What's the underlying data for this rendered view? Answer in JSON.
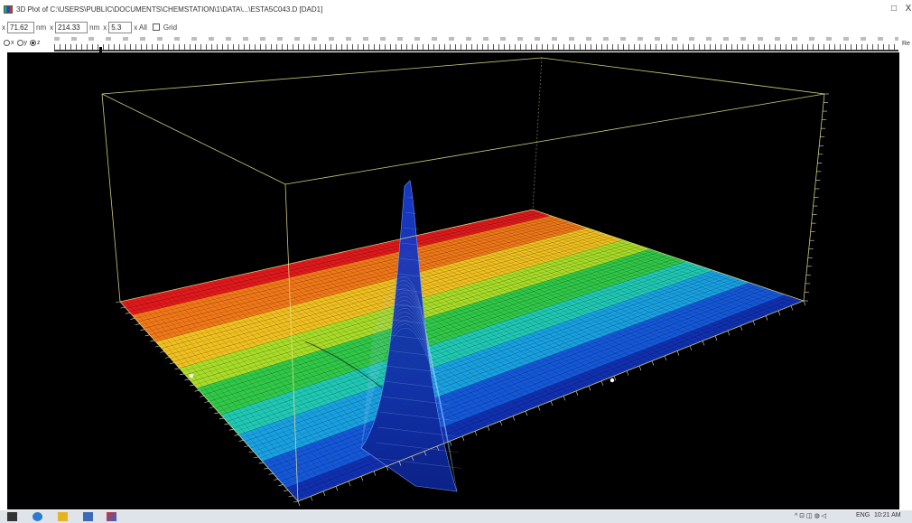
{
  "window": {
    "title": "3D Plot of C:\\USERS\\PUBLIC\\DOCUMENTS\\CHEMSTATION\\1\\DATA\\...\\ESTA5C043.D [DAD1]",
    "maximize_glyph": "□",
    "close_glyph": "X"
  },
  "toolbar": {
    "field1_label": "x",
    "field1_value": "71.62",
    "field2_label": "nm",
    "field3_label": "x",
    "field3_value": "214.33",
    "field4_label": "nm",
    "field5_label": "x",
    "field5_value": "5.3",
    "all_label": "x All",
    "grid_label": "Grid"
  },
  "view_radios": {
    "options": [
      "x",
      "y",
      "z"
    ],
    "selected": "z"
  },
  "reset_label": "Re",
  "plot": {
    "background": "#000000",
    "box_color": "#e8e08a",
    "colormap": [
      "#e0191c",
      "#f07818",
      "#f0c020",
      "#a8dc28",
      "#30c848",
      "#20c8b4",
      "#18a0e0",
      "#1458d8",
      "#1030b0"
    ]
  },
  "taskbar": {
    "time": "10:21 AM",
    "lang": "ENG"
  }
}
